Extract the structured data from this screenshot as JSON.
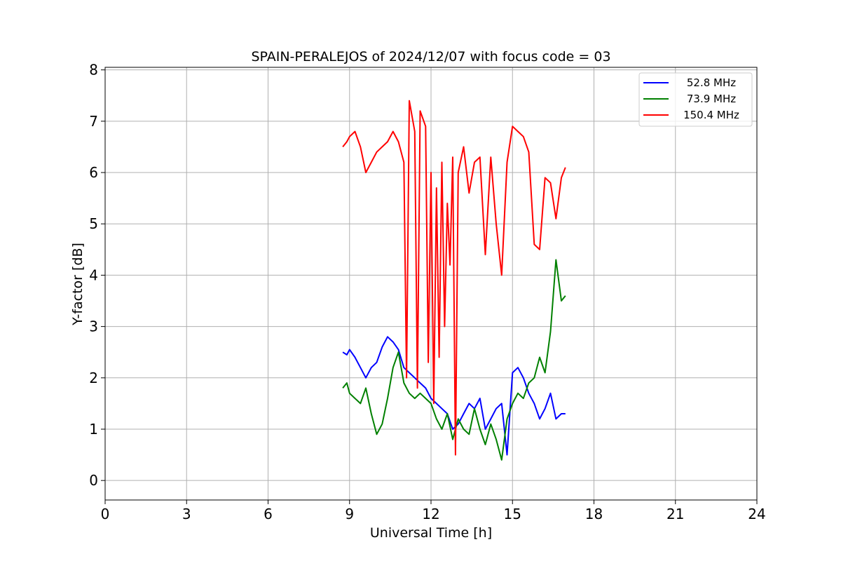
{
  "chart_data": {
    "type": "line",
    "title": "SPAIN-PERALEJOS of 2024/12/07 with focus code = 03",
    "xlabel": "Universal Time [h]",
    "ylabel": "Y-factor [dB]",
    "xlim": [
      0,
      24
    ],
    "ylim": [
      -0.38,
      8.05
    ],
    "xticks": [
      0,
      3,
      6,
      9,
      12,
      15,
      18,
      21,
      24
    ],
    "yticks": [
      0,
      1,
      2,
      3,
      4,
      5,
      6,
      7,
      8
    ],
    "xtick_labels": [
      "0",
      "3",
      "6",
      "9",
      "12",
      "15",
      "18",
      "21",
      "24"
    ],
    "ytick_labels": [
      "0",
      "1",
      "2",
      "3",
      "4",
      "5",
      "6",
      "7",
      "8"
    ],
    "grid": true,
    "legend_position": "top-right",
    "series": [
      {
        "name": "52.8 MHz",
        "color": "#0000ff",
        "x": [
          8.75,
          8.9,
          9.0,
          9.2,
          9.4,
          9.6,
          9.8,
          10.0,
          10.2,
          10.4,
          10.6,
          10.8,
          11.0,
          11.2,
          11.4,
          11.6,
          11.8,
          12.0,
          12.2,
          12.4,
          12.6,
          12.8,
          13.0,
          13.2,
          13.4,
          13.6,
          13.8,
          14.0,
          14.2,
          14.4,
          14.6,
          14.8,
          15.0,
          15.2,
          15.4,
          15.6,
          15.8,
          16.0,
          16.2,
          16.4,
          16.6,
          16.8,
          16.95
        ],
        "y": [
          2.5,
          2.45,
          2.55,
          2.4,
          2.2,
          2.0,
          2.2,
          2.3,
          2.6,
          2.8,
          2.7,
          2.55,
          2.2,
          2.1,
          2.0,
          1.9,
          1.8,
          1.6,
          1.5,
          1.4,
          1.3,
          1.0,
          1.1,
          1.3,
          1.5,
          1.4,
          1.6,
          1.0,
          1.2,
          1.4,
          1.5,
          0.5,
          2.1,
          2.2,
          2.0,
          1.7,
          1.5,
          1.2,
          1.4,
          1.7,
          1.2,
          1.3,
          1.3
        ]
      },
      {
        "name": "73.9 MHz",
        "color": "#008000",
        "x": [
          8.75,
          8.9,
          9.0,
          9.2,
          9.4,
          9.6,
          9.8,
          10.0,
          10.2,
          10.4,
          10.6,
          10.8,
          11.0,
          11.2,
          11.4,
          11.6,
          11.8,
          12.0,
          12.2,
          12.4,
          12.6,
          12.8,
          13.0,
          13.2,
          13.4,
          13.6,
          13.8,
          14.0,
          14.2,
          14.4,
          14.6,
          14.8,
          15.0,
          15.2,
          15.4,
          15.6,
          15.8,
          16.0,
          16.2,
          16.4,
          16.6,
          16.8,
          16.95
        ],
        "y": [
          1.8,
          1.9,
          1.7,
          1.6,
          1.5,
          1.8,
          1.3,
          0.9,
          1.1,
          1.6,
          2.2,
          2.5,
          1.9,
          1.7,
          1.6,
          1.7,
          1.6,
          1.5,
          1.2,
          1.0,
          1.3,
          0.8,
          1.2,
          1.0,
          0.9,
          1.4,
          1.0,
          0.7,
          1.1,
          0.8,
          0.4,
          1.2,
          1.5,
          1.7,
          1.6,
          1.9,
          2.0,
          2.4,
          2.1,
          2.9,
          4.3,
          3.5,
          3.6
        ]
      },
      {
        "name": "150.4 MHz",
        "color": "#ff0000",
        "x": [
          8.75,
          8.9,
          9.0,
          9.2,
          9.4,
          9.6,
          9.8,
          10.0,
          10.2,
          10.4,
          10.6,
          10.8,
          11.0,
          11.1,
          11.2,
          11.4,
          11.5,
          11.6,
          11.8,
          11.9,
          12.0,
          12.1,
          12.2,
          12.3,
          12.4,
          12.5,
          12.6,
          12.7,
          12.8,
          12.9,
          13.0,
          13.2,
          13.4,
          13.6,
          13.8,
          14.0,
          14.2,
          14.4,
          14.6,
          14.8,
          15.0,
          15.2,
          15.4,
          15.6,
          15.8,
          16.0,
          16.2,
          16.4,
          16.6,
          16.8,
          16.95
        ],
        "y": [
          6.5,
          6.6,
          6.7,
          6.8,
          6.5,
          6.0,
          6.2,
          6.4,
          6.5,
          6.6,
          6.8,
          6.6,
          6.2,
          2.0,
          7.4,
          6.8,
          1.8,
          7.2,
          6.9,
          2.3,
          6.0,
          1.5,
          5.7,
          2.4,
          6.2,
          3.0,
          5.4,
          4.2,
          6.3,
          0.5,
          6.0,
          6.5,
          5.6,
          6.2,
          6.3,
          4.4,
          6.3,
          5.0,
          4.0,
          6.2,
          6.9,
          6.8,
          6.7,
          6.4,
          4.6,
          4.5,
          5.9,
          5.8,
          5.1,
          5.9,
          6.1
        ]
      }
    ]
  }
}
